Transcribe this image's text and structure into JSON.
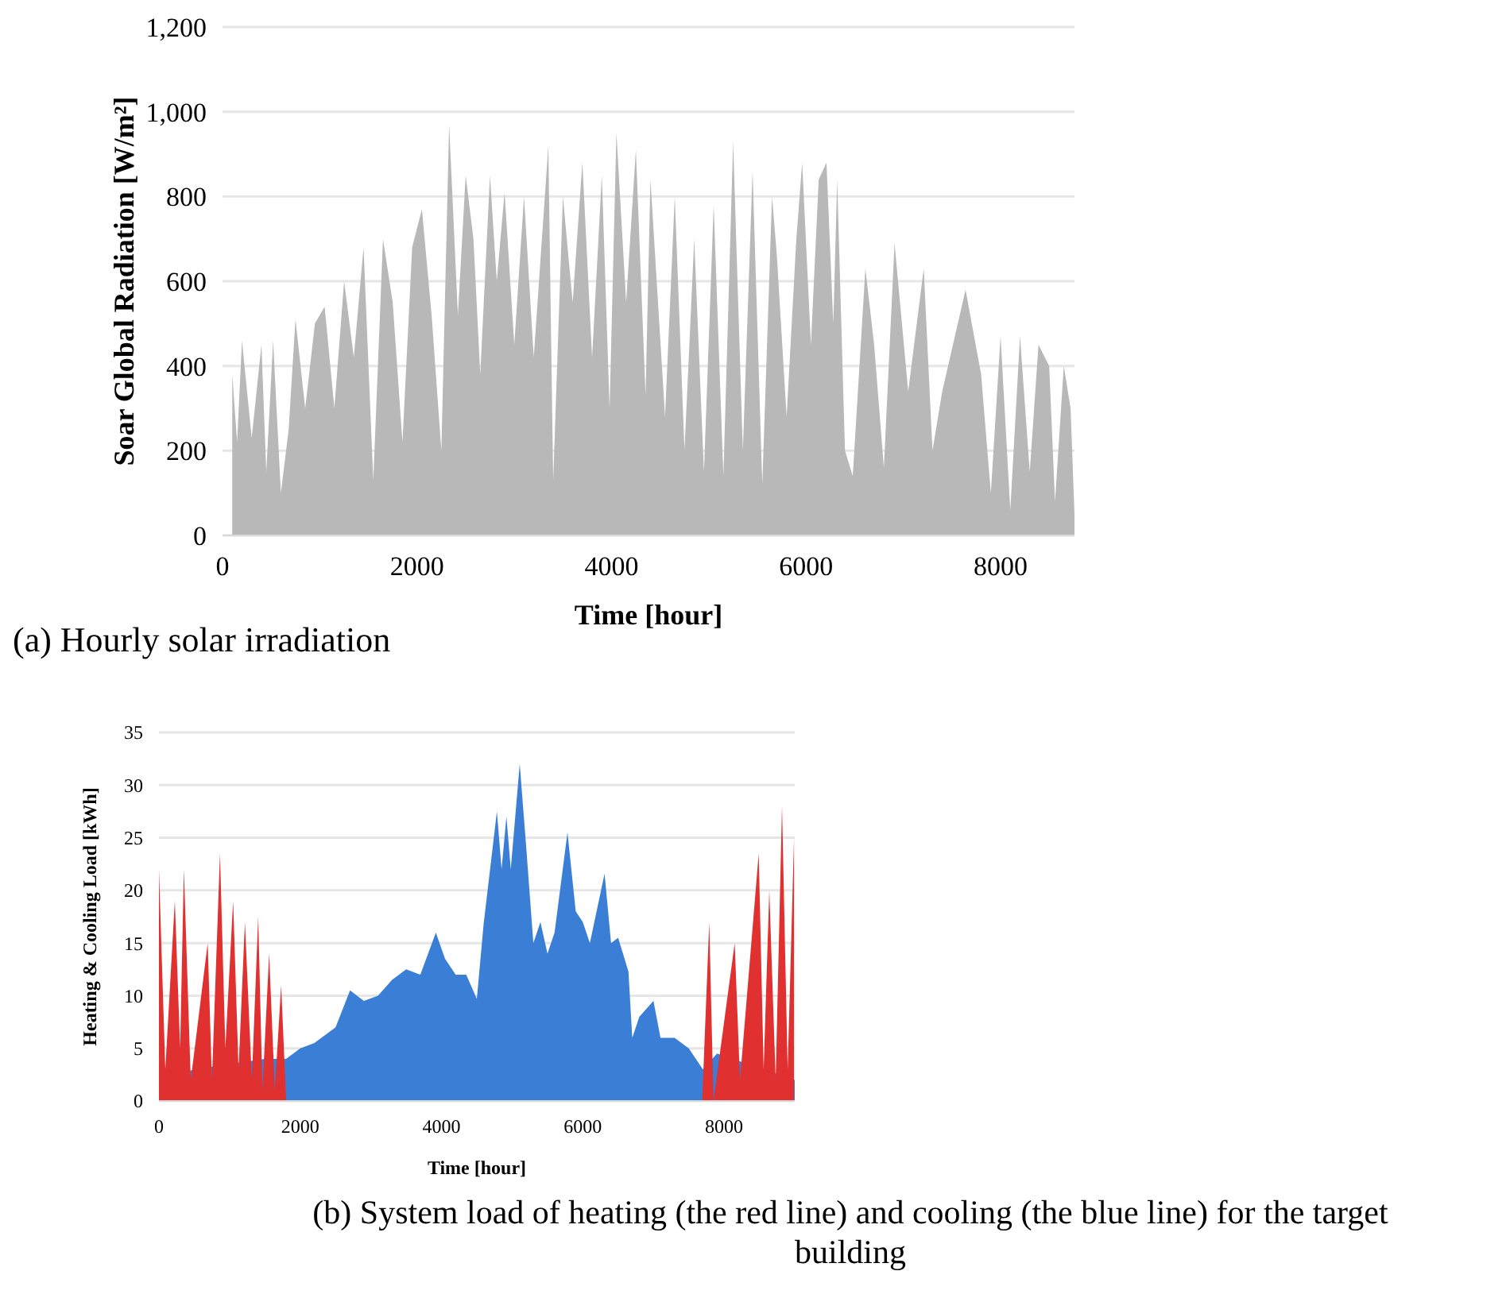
{
  "chart_data": [
    {
      "type": "area",
      "xlabel": "Time [hour]",
      "ylabel": "Soar Global Radiation [W/m²]",
      "xlim": [
        0,
        8760
      ],
      "ylim": [
        0,
        1200
      ],
      "xticks": [
        0,
        2000,
        4000,
        6000,
        8000
      ],
      "yticks": [
        0,
        200,
        400,
        600,
        800,
        {
          "value": 1000,
          "label": "1,000"
        },
        {
          "value": 1200,
          "label": "1,200"
        }
      ],
      "grid": "y",
      "annotations": [
        "(a) Hourly solar irradiation"
      ],
      "series": [
        {
          "color": "#b8b8b8",
          "x": [
            100,
            150,
            200,
            300,
            400,
            450,
            520,
            600,
            680,
            750,
            850,
            950,
            1050,
            1150,
            1250,
            1350,
            1450,
            1550,
            1650,
            1750,
            1850,
            1950,
            2050,
            2150,
            2250,
            2330,
            2420,
            2500,
            2580,
            2650,
            2750,
            2820,
            2900,
            3000,
            3100,
            3200,
            3350,
            3400,
            3500,
            3600,
            3700,
            3800,
            3900,
            3980,
            4050,
            4150,
            4250,
            4350,
            4400,
            4550,
            4650,
            4750,
            4850,
            4950,
            5050,
            5150,
            5250,
            5350,
            5450,
            5550,
            5650,
            5700,
            5800,
            5900,
            5960,
            6050,
            6130,
            6210,
            6280,
            6320,
            6400,
            6480,
            6610,
            6700,
            6800,
            6910,
            7050,
            7210,
            7300,
            7400,
            7640,
            7800,
            7900,
            8000,
            8100,
            8200,
            8300,
            8390,
            8500,
            8560,
            8650,
            8720,
            8760
          ],
          "values": [
            380,
            220,
            460,
            230,
            450,
            150,
            460,
            100,
            250,
            510,
            300,
            500,
            540,
            300,
            600,
            420,
            680,
            130,
            700,
            550,
            220,
            680,
            770,
            520,
            200,
            970,
            520,
            850,
            700,
            380,
            850,
            600,
            810,
            450,
            800,
            420,
            920,
            130,
            800,
            550,
            880,
            420,
            850,
            300,
            950,
            550,
            910,
            330,
            840,
            280,
            800,
            200,
            700,
            150,
            780,
            140,
            930,
            200,
            860,
            120,
            800,
            660,
            280,
            700,
            880,
            450,
            840,
            880,
            500,
            840,
            200,
            140,
            630,
            450,
            160,
            690,
            340,
            630,
            200,
            340,
            580,
            380,
            100,
            470,
            60,
            470,
            150,
            450,
            400,
            80,
            400,
            300,
            50
          ]
        }
      ]
    },
    {
      "type": "area",
      "xlabel": "Time [hour]",
      "ylabel": "Heating & Cooling Load [kWh]",
      "xlim": [
        0,
        9000
      ],
      "ylim": [
        0,
        35
      ],
      "xticks": [
        0,
        2000,
        4000,
        6000,
        8000
      ],
      "yticks": [
        0,
        5,
        10,
        15,
        20,
        25,
        30,
        35
      ],
      "grid": "y",
      "annotations": [
        "(b) System load of heating (the red line) and cooling (the blue line) for the target building"
      ],
      "series": [
        {
          "color": "#3a7fd5",
          "x": [
            0,
            500,
            1000,
            1500,
            1800,
            2000,
            2200,
            2500,
            2705,
            2900,
            3100,
            3300,
            3500,
            3700,
            3920,
            4050,
            4200,
            4350,
            4500,
            4596,
            4784,
            4850,
            4919,
            4980,
            5107,
            5200,
            5300,
            5400,
            5500,
            5600,
            5783,
            5900,
            6000,
            6100,
            6308,
            6400,
            6500,
            6646,
            6700,
            6800,
            7000,
            7100,
            7300,
            7500,
            7700,
            7900,
            8100,
            8300,
            8600,
            8900,
            9000
          ],
          "values": [
            2,
            3,
            null,
            4,
            4,
            5,
            5.5,
            7,
            10.5,
            9.5,
            10,
            11.5,
            12.5,
            12,
            16,
            13.5,
            12,
            12,
            9.7,
            16.8,
            27.5,
            22,
            27,
            22,
            32,
            24,
            15,
            17,
            14,
            16,
            25.5,
            18,
            17,
            15,
            21.6,
            15,
            15.5,
            12.3,
            6,
            8,
            9.5,
            6,
            6,
            5,
            3,
            4.5,
            null,
            null,
            null,
            null,
            2
          ]
        },
        {
          "color": "#e03030",
          "x": [
            0,
            90,
            225,
            300,
            353,
            450,
            525,
            690,
            750,
            864,
            940,
            1050,
            1127,
            1217,
            1315,
            1405,
            1465,
            1560,
            1640,
            1730,
            1800,
            1900,
            7600,
            7690,
            7790,
            7850,
            8150,
            8225,
            8490,
            8560,
            8640,
            8730,
            8820,
            8900,
            8990
          ],
          "values": [
            22,
            3,
            19,
            5,
            22,
            2,
            6,
            15,
            2,
            23.5,
            5,
            19,
            3,
            17,
            2,
            17.5,
            1,
            14,
            1,
            11,
            0,
            0,
            0,
            0,
            17,
            0,
            15,
            2,
            23.5,
            3,
            20,
            2,
            28,
            3,
            25
          ]
        }
      ]
    }
  ]
}
